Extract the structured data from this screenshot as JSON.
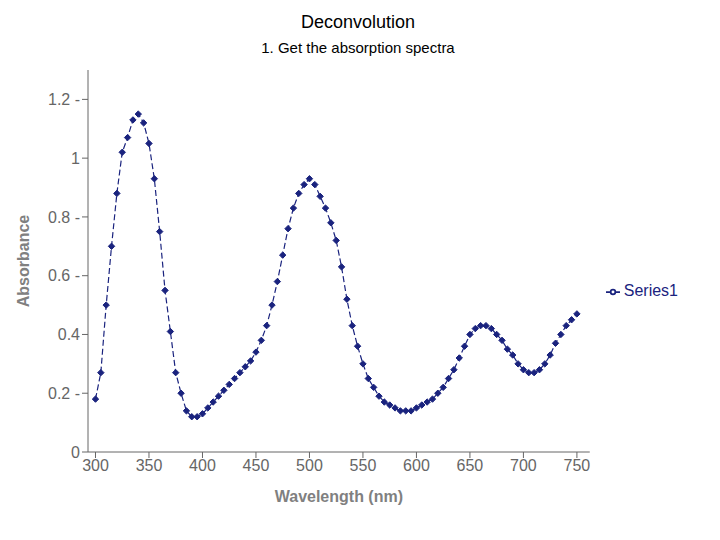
{
  "chart_data": {
    "type": "line",
    "title": "Deconvolution",
    "subtitle": "1.  Get the absorption spectra",
    "xlabel": "Wavelength (nm)",
    "ylabel": "Absorbance",
    "x": [
      300,
      305,
      310,
      315,
      320,
      325,
      330,
      335,
      340,
      345,
      350,
      355,
      360,
      365,
      370,
      375,
      380,
      385,
      390,
      395,
      400,
      405,
      410,
      415,
      420,
      425,
      430,
      435,
      440,
      445,
      450,
      455,
      460,
      465,
      470,
      475,
      480,
      485,
      490,
      495,
      500,
      505,
      510,
      515,
      520,
      525,
      530,
      535,
      540,
      545,
      550,
      555,
      560,
      565,
      570,
      575,
      580,
      585,
      590,
      595,
      600,
      605,
      610,
      615,
      620,
      625,
      630,
      635,
      640,
      645,
      650,
      655,
      660,
      665,
      670,
      675,
      680,
      685,
      690,
      695,
      700,
      705,
      710,
      715,
      720,
      725,
      730,
      735,
      740,
      745,
      750
    ],
    "series": [
      {
        "name": "Series1",
        "color": "#1a237e",
        "marker": "diamond",
        "line_style": "dashed",
        "values": [
          0.18,
          0.27,
          0.5,
          0.7,
          0.88,
          1.02,
          1.07,
          1.13,
          1.15,
          1.12,
          1.05,
          0.93,
          0.75,
          0.55,
          0.41,
          0.27,
          0.2,
          0.14,
          0.12,
          0.12,
          0.13,
          0.15,
          0.17,
          0.19,
          0.21,
          0.23,
          0.25,
          0.27,
          0.29,
          0.31,
          0.34,
          0.38,
          0.43,
          0.5,
          0.58,
          0.67,
          0.76,
          0.83,
          0.88,
          0.91,
          0.93,
          0.91,
          0.87,
          0.83,
          0.78,
          0.72,
          0.63,
          0.52,
          0.43,
          0.36,
          0.3,
          0.25,
          0.22,
          0.19,
          0.17,
          0.16,
          0.15,
          0.14,
          0.14,
          0.14,
          0.15,
          0.16,
          0.17,
          0.18,
          0.2,
          0.22,
          0.25,
          0.28,
          0.32,
          0.36,
          0.4,
          0.42,
          0.43,
          0.43,
          0.42,
          0.4,
          0.38,
          0.35,
          0.33,
          0.3,
          0.28,
          0.27,
          0.27,
          0.28,
          0.3,
          0.33,
          0.37,
          0.4,
          0.43,
          0.45,
          0.47
        ]
      }
    ],
    "xlim": [
      293,
      762
    ],
    "xticks": [
      300,
      350,
      400,
      450,
      500,
      550,
      600,
      650,
      700,
      750
    ],
    "ylim": [
      0,
      1.3
    ],
    "yticks": [
      0,
      {
        "value": 0.2,
        "label": "0.2 -"
      },
      0.4,
      {
        "value": 0.6,
        "label": "0.6 -"
      },
      {
        "value": 0.8,
        "label": "0.8 -"
      },
      1,
      {
        "value": 1.2,
        "label": "1.2 -"
      }
    ],
    "grid": false,
    "legend": "right"
  }
}
